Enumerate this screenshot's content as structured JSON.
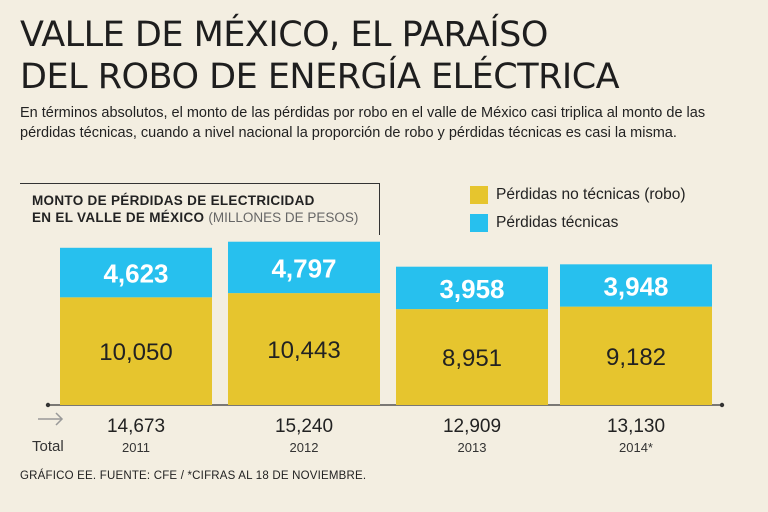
{
  "title_line1": "VALLE DE MÉXICO, EL PARAÍSO",
  "title_line2": "DEL ROBO DE ENERGÍA ELÉCTRICA",
  "subtitle": "En términos absolutos, el monto de las pérdidas por robo en el valle de México casi triplica al monto de las pérdidas técnicas, cuando a nivel nacional la proporción de robo y pérdidas técnicas es casi la misma.",
  "chart_label_line1": "MONTO DE PÉRDIDAS DE ELECTRICIDAD",
  "chart_label_line2": "EN EL VALLE DE MÉXICO",
  "chart_label_units": "(MILLONES DE PESOS)",
  "total_label": "Total",
  "footer": "GRÁFICO EE. FUENTE: CFE  / *CIFRAS AL 18 DE NOVIEMBRE.",
  "colors": {
    "robo": "#e6c52e",
    "tecnicas": "#27c0ee",
    "background": "#f3eee1"
  },
  "chart_data": {
    "type": "bar",
    "stacked": true,
    "categories": [
      "2011",
      "2012",
      "2013",
      "2014*"
    ],
    "series": [
      {
        "name": "Pérdidas no técnicas (robo)",
        "values": [
          10050,
          10443,
          8951,
          9182
        ],
        "labels": [
          "10,050",
          "10,443",
          "8,951",
          "9,182"
        ]
      },
      {
        "name": "Pérdidas técnicas",
        "values": [
          4623,
          4797,
          3958,
          3948
        ],
        "labels": [
          "4,623",
          "4,797",
          "3,958",
          "3,948"
        ]
      }
    ],
    "totals": [
      "14,673",
      "15,240",
      "12,909",
      "13,130"
    ],
    "ylim": [
      0,
      15400
    ]
  }
}
